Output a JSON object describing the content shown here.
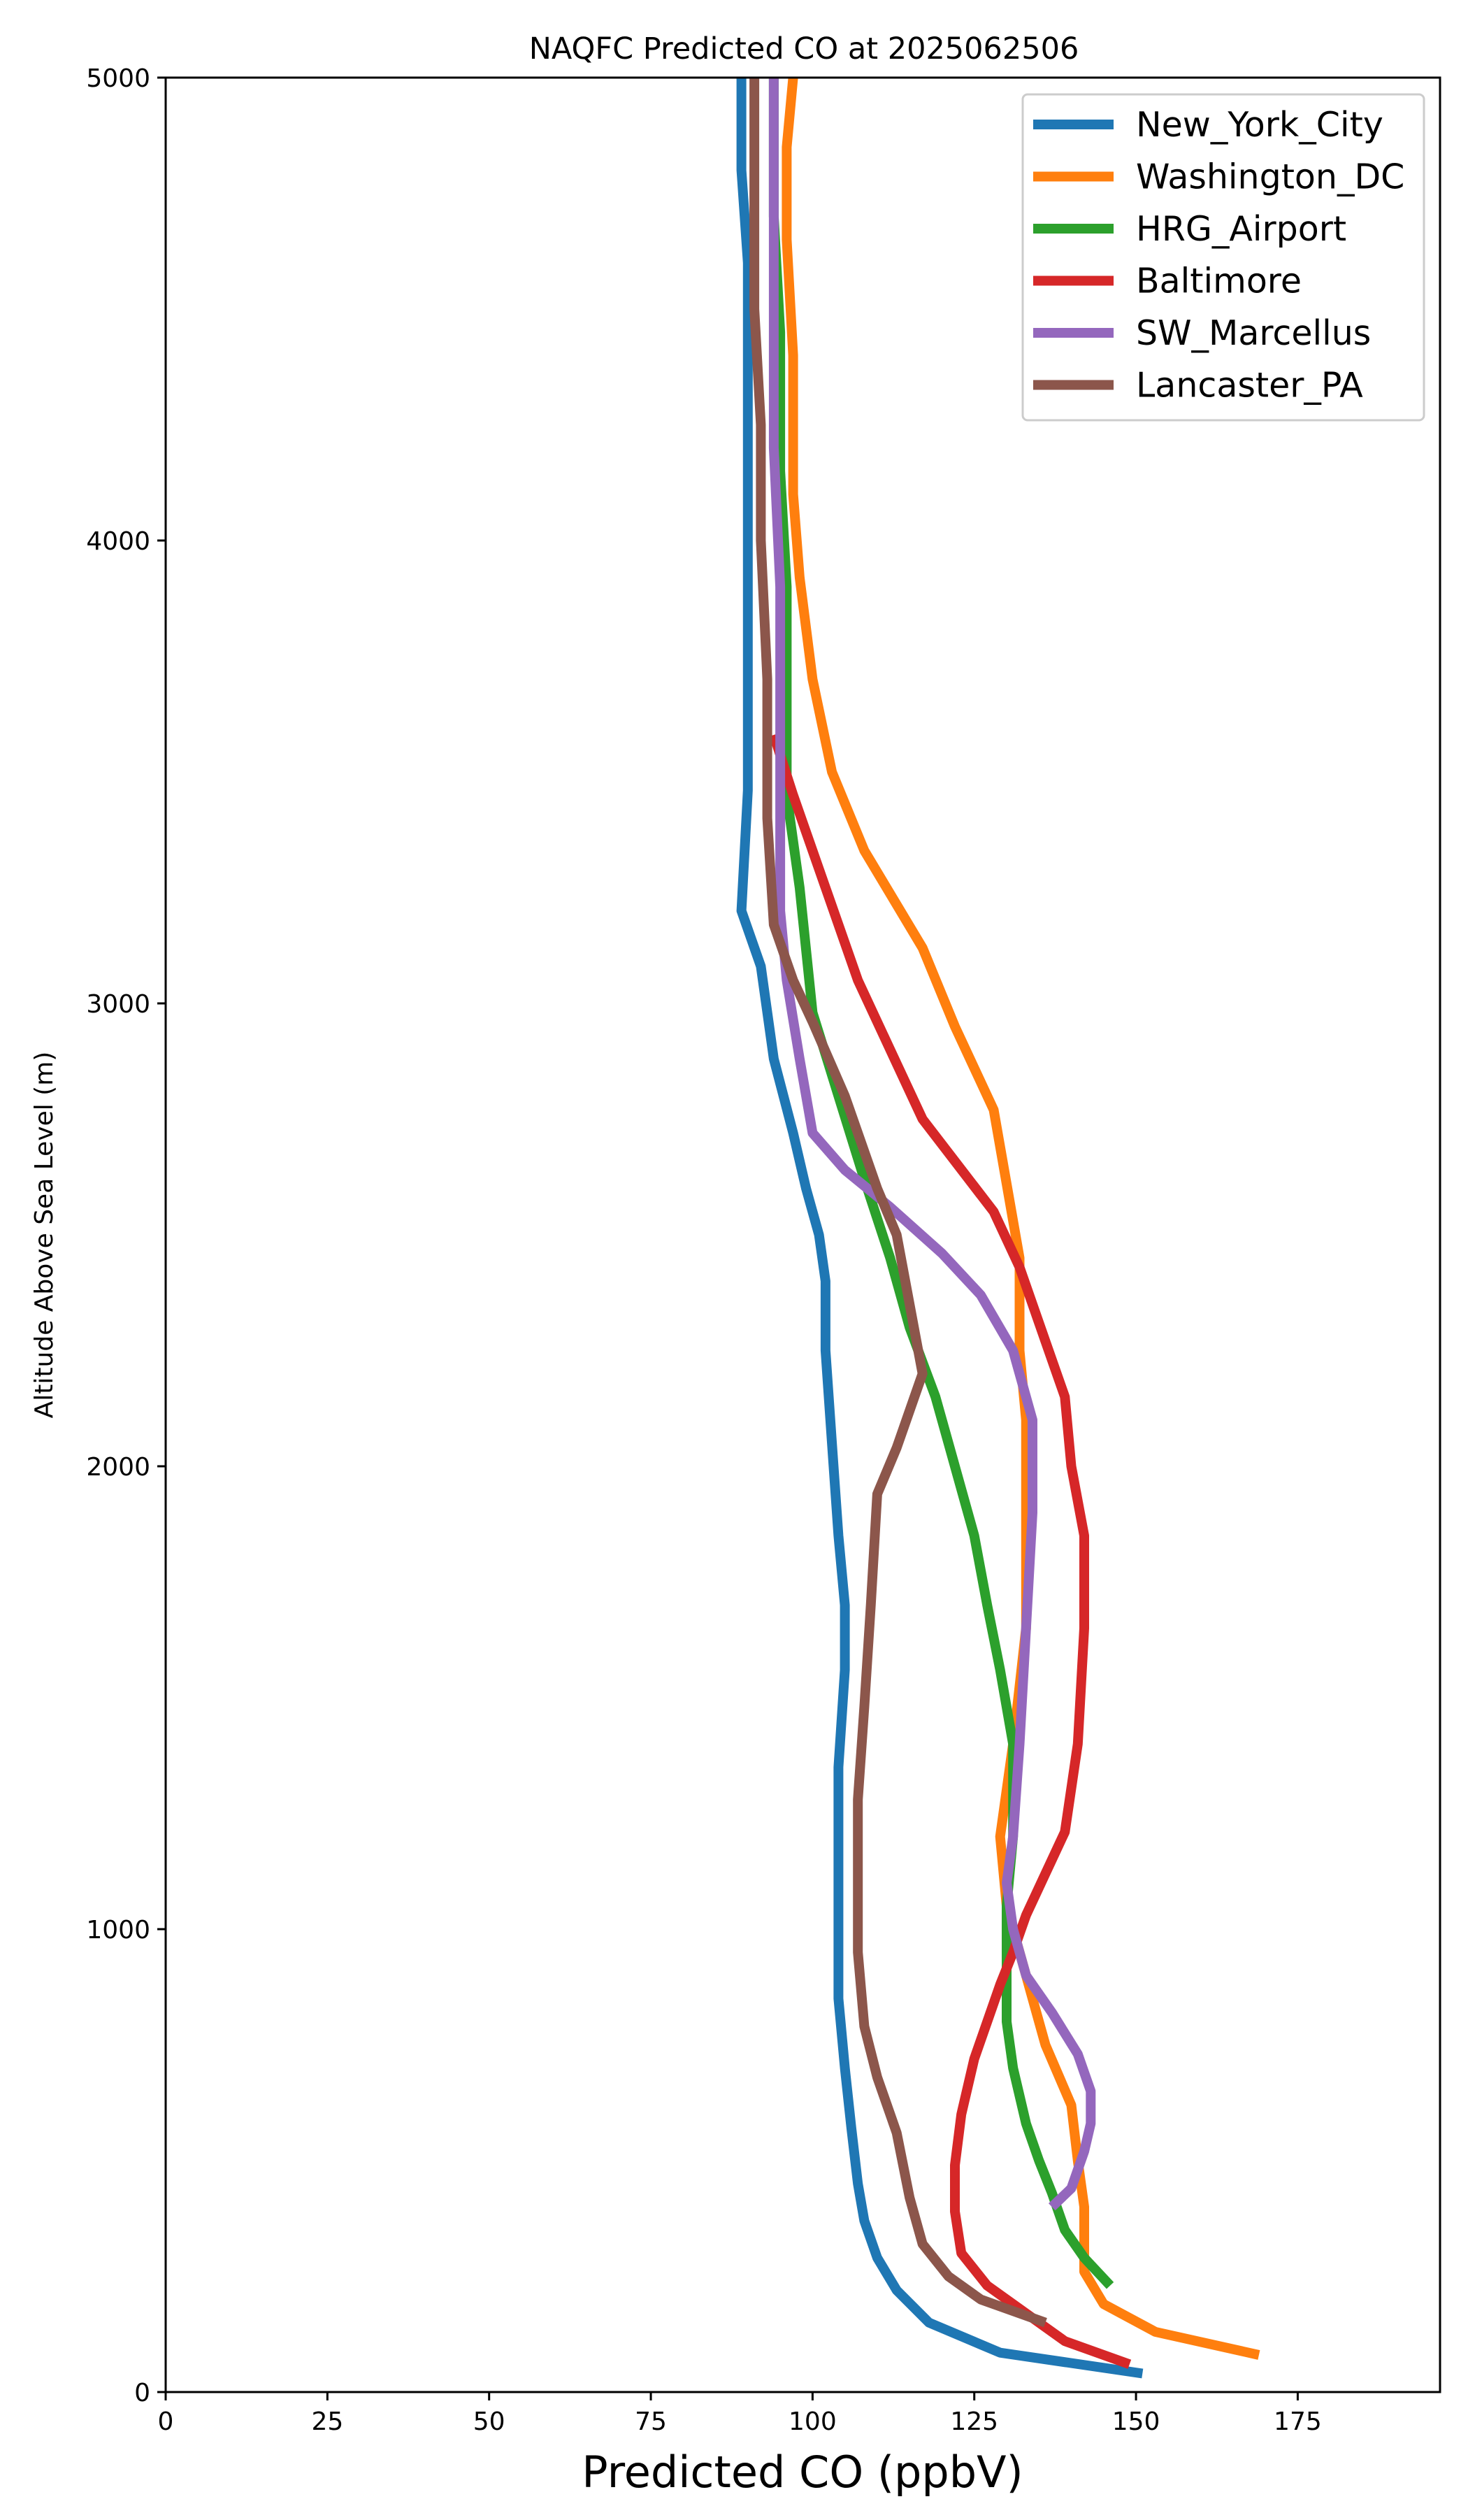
{
  "chart_data": {
    "type": "line",
    "title": "NAQFC Predicted CO at 2025062506",
    "xlabel": "Predicted CO (ppbV)",
    "ylabel": "Altitude Above Sea Level (m)",
    "xlim": [
      0,
      197
    ],
    "ylim": [
      0,
      5000
    ],
    "xticks": [
      0,
      25,
      50,
      75,
      100,
      125,
      150,
      175
    ],
    "yticks": [
      0,
      1000,
      2000,
      3000,
      4000,
      5000
    ],
    "grid": false,
    "legend_position": "top-right",
    "series": [
      {
        "name": "New_York_City",
        "color": "#1f77b4",
        "x": [
          151,
          129,
          118,
          113,
          110,
          108,
          107,
          106,
          105,
          104,
          104,
          104,
          104,
          105,
          105,
          104,
          103,
          102,
          102,
          101,
          99,
          97,
          94,
          92,
          89,
          90,
          90,
          90,
          90,
          89,
          89
        ],
        "y": [
          40,
          85,
          150,
          220,
          290,
          370,
          450,
          570,
          700,
          850,
          1000,
          1150,
          1350,
          1560,
          1700,
          1850,
          2050,
          2250,
          2400,
          2500,
          2600,
          2720,
          2880,
          3080,
          3200,
          3460,
          3900,
          4300,
          4600,
          4800,
          5000
        ]
      },
      {
        "name": "Washington_DC",
        "color": "#ff7f0e",
        "x": [
          169,
          153,
          145,
          142,
          142,
          141,
          140,
          136,
          133,
          130,
          129,
          131,
          133,
          133,
          133,
          132,
          132,
          128,
          122,
          117,
          108,
          103,
          100,
          98,
          97,
          97,
          96,
          96,
          97
        ],
        "y": [
          80,
          130,
          190,
          260,
          400,
          500,
          620,
          750,
          900,
          1050,
          1200,
          1400,
          1650,
          1900,
          2100,
          2250,
          2450,
          2770,
          2950,
          3120,
          3330,
          3500,
          3700,
          3920,
          4100,
          4400,
          4650,
          4850,
          5000
        ]
      },
      {
        "name": "HRG_Airport",
        "color": "#2ca02c",
        "x": [
          146,
          142,
          139,
          137,
          135,
          133,
          131,
          130,
          130,
          130,
          131,
          131,
          129,
          127,
          125,
          122,
          119,
          115,
          112,
          108,
          104,
          100,
          98,
          96,
          96,
          96,
          95,
          95,
          94,
          94,
          94
        ],
        "y": [
          230,
          290,
          350,
          430,
          500,
          580,
          700,
          800,
          900,
          1050,
          1200,
          1400,
          1560,
          1700,
          1850,
          2000,
          2150,
          2300,
          2450,
          2620,
          2800,
          2980,
          3250,
          3450,
          3650,
          3900,
          4150,
          4450,
          4700,
          4880,
          5000
        ]
      },
      {
        "name": "Baltimore",
        "color": "#d62728",
        "x": [
          149,
          139,
          127,
          123,
          122,
          122,
          123,
          125,
          127,
          129,
          131,
          133,
          136,
          139,
          141,
          142,
          142,
          140,
          139,
          136,
          132,
          128,
          117,
          112,
          107,
          102,
          97,
          94
        ],
        "y": [
          60,
          110,
          230,
          300,
          390,
          490,
          600,
          720,
          800,
          880,
          950,
          1030,
          1120,
          1210,
          1400,
          1650,
          1850,
          2000,
          2150,
          2270,
          2430,
          2550,
          2750,
          2900,
          3050,
          3250,
          3450,
          3580
        ]
      },
      {
        "name": "SW_Marcellus",
        "color": "#9467bd",
        "x": [
          137,
          140,
          142,
          143,
          143,
          141,
          137,
          133,
          131,
          130,
          131,
          132,
          133,
          134,
          134,
          131,
          126,
          120,
          112,
          105,
          100,
          98,
          96,
          95,
          95,
          95,
          94,
          94,
          94,
          94,
          94
        ],
        "y": [
          400,
          440,
          520,
          580,
          650,
          730,
          820,
          900,
          1000,
          1100,
          1200,
          1400,
          1650,
          1900,
          2100,
          2250,
          2370,
          2460,
          2560,
          2640,
          2720,
          2880,
          3050,
          3200,
          3500,
          3900,
          4200,
          4450,
          4700,
          4850,
          5000
        ]
      },
      {
        "name": "Lancaster_PA",
        "color": "#8c564b",
        "x": [
          136,
          126,
          121,
          117,
          115,
          113,
          110,
          108,
          107,
          107,
          107,
          108,
          109,
          110,
          113,
          117,
          113,
          110,
          105,
          100,
          97,
          94,
          93,
          93,
          92,
          92,
          91,
          91,
          91,
          91
        ],
        "y": [
          150,
          200,
          250,
          320,
          420,
          560,
          680,
          790,
          950,
          1100,
          1280,
          1480,
          1700,
          1940,
          2040,
          2200,
          2500,
          2600,
          2800,
          2960,
          3050,
          3170,
          3400,
          3700,
          4000,
          4250,
          4500,
          4700,
          4850,
          5000
        ]
      }
    ]
  }
}
